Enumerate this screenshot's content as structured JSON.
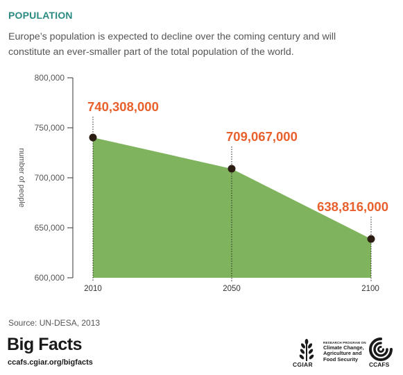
{
  "header": {
    "title": "POPULATION",
    "subtitle": "Europe’s population is expected to decline over the coming century and will constitute an ever-smaller part of the total population of the world."
  },
  "chart_data": {
    "type": "area",
    "x": [
      "2010",
      "2050",
      "2100"
    ],
    "series": [
      {
        "values": [
          740308000,
          709067000,
          638816000
        ]
      }
    ],
    "data_labels": [
      "740,308,000",
      "709,067,000",
      "638,816,000"
    ],
    "ylabel": "number of people",
    "yticks": [
      "600,000",
      "650,000",
      "700,000",
      "750,000",
      "800,000"
    ],
    "ylim": [
      600000000,
      800000000
    ],
    "grid": false,
    "fill_color": "#80b35d",
    "label_color": "#e8602c",
    "marker_color": "#2b1d14"
  },
  "footer": {
    "source": "Source: UN-DESA, 2013",
    "brand": "Big Facts",
    "url": "ccafs.cgiar.org/bigfacts",
    "cgiar": "CGIAR",
    "program_small": "RESEARCH PROGRAM ON",
    "program_lines": [
      "Climate Change,",
      "Agriculture and",
      "Food Security"
    ],
    "ccafs": "CCAFS"
  }
}
